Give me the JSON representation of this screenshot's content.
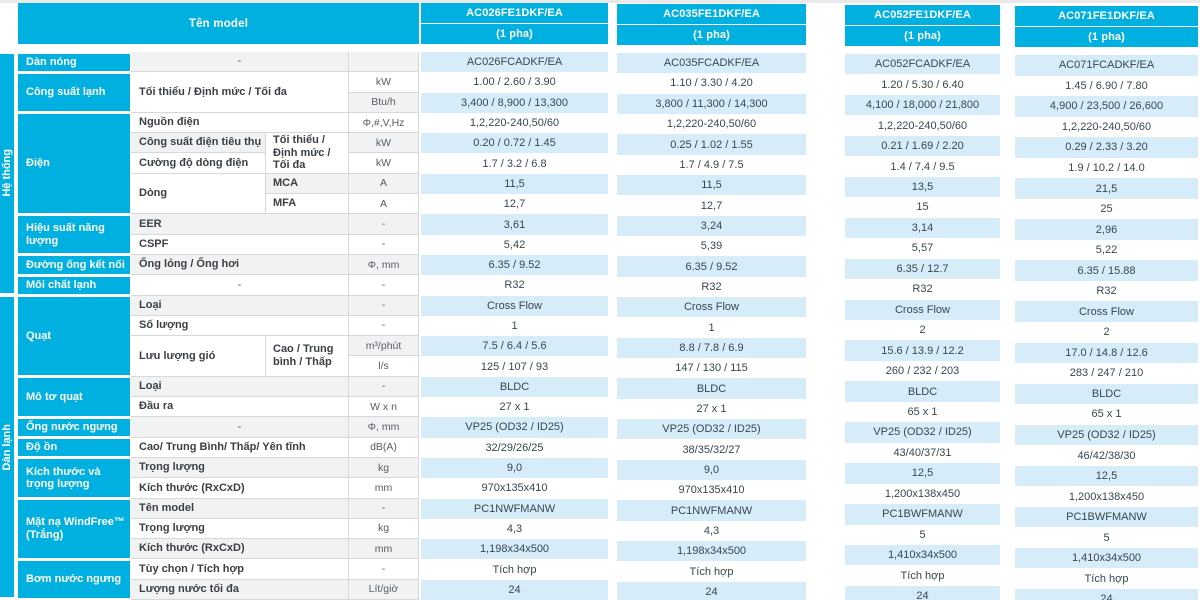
{
  "table": {
    "corner_header": "Tên model",
    "sections": [
      {
        "name": "Hệ thống",
        "r0": 0,
        "r1": 12
      },
      {
        "name": "Dàn lạnh",
        "r0": 12,
        "r1": 27
      }
    ],
    "categories": [
      {
        "label": "Dàn nóng",
        "r0": 0,
        "r1": 1
      },
      {
        "label": "Công suất lạnh",
        "r0": 1,
        "r1": 3
      },
      {
        "label": "Điện",
        "r0": 3,
        "r1": 8
      },
      {
        "label": "Hiệu suất năng lượng",
        "r0": 8,
        "r1": 10
      },
      {
        "label": "Đường ống kết nối",
        "r0": 10,
        "r1": 11
      },
      {
        "label": "Môi chất lạnh",
        "r0": 11,
        "r1": 12
      },
      {
        "label": "Quạt",
        "r0": 12,
        "r1": 16
      },
      {
        "label": "Mô tơ quạt",
        "r0": 16,
        "r1": 18
      },
      {
        "label": "Ống nước ngưng",
        "r0": 18,
        "r1": 19
      },
      {
        "label": "Độ ồn",
        "r0": 19,
        "r1": 20
      },
      {
        "label": "Kích thước và trọng lượng",
        "r0": 20,
        "r1": 22
      },
      {
        "label": "Mặt nạ WindFree™ (Trắng)",
        "r0": 22,
        "r1": 25
      },
      {
        "label": "Bơm nước ngưng",
        "r0": 25,
        "r1": 27
      }
    ],
    "labels": [
      {
        "text": "-",
        "r0": 0,
        "r1": 1,
        "wide": true,
        "center": true
      },
      {
        "text": "Tối thiểu / Định mức / Tối đa",
        "r0": 1,
        "r1": 3,
        "wide": true
      },
      {
        "text": "Nguồn điện",
        "r0": 3,
        "r1": 4,
        "wide": true
      },
      {
        "text": "Công suất điện tiêu thụ",
        "r0": 4,
        "r1": 5
      },
      {
        "text": "Cường độ dòng điện",
        "r0": 5,
        "r1": 6
      },
      {
        "text": "Dòng",
        "r0": 6,
        "r1": 8
      },
      {
        "text": "EER",
        "r0": 8,
        "r1": 9,
        "wide": true
      },
      {
        "text": "CSPF",
        "r0": 9,
        "r1": 10,
        "wide": true
      },
      {
        "text": "Ống lỏng / Ống hơi",
        "r0": 10,
        "r1": 11,
        "wide": true
      },
      {
        "text": "-",
        "r0": 11,
        "r1": 12,
        "wide": true,
        "center": true
      },
      {
        "text": "Loại",
        "r0": 12,
        "r1": 13,
        "wide": true
      },
      {
        "text": "Số lượng",
        "r0": 13,
        "r1": 14,
        "wide": true
      },
      {
        "text": "Lưu lượng gió",
        "r0": 14,
        "r1": 16
      },
      {
        "text": "Loại",
        "r0": 16,
        "r1": 17,
        "wide": true
      },
      {
        "text": "Đầu ra",
        "r0": 17,
        "r1": 18,
        "wide": true
      },
      {
        "text": "-",
        "r0": 18,
        "r1": 19,
        "wide": true,
        "center": true
      },
      {
        "text": "Cao/ Trung Bình/ Thấp/ Yên tĩnh",
        "r0": 19,
        "r1": 20,
        "wide": true
      },
      {
        "text": "Trọng lượng",
        "r0": 20,
        "r1": 21,
        "wide": true
      },
      {
        "text": "Kích thước (RxCxD)",
        "r0": 21,
        "r1": 22,
        "wide": true
      },
      {
        "text": "Tên model",
        "r0": 22,
        "r1": 23,
        "wide": true
      },
      {
        "text": "Trọng lượng",
        "r0": 23,
        "r1": 24,
        "wide": true
      },
      {
        "text": "Kích thước (RxCxD)",
        "r0": 24,
        "r1": 25,
        "wide": true
      },
      {
        "text": "Tùy chọn / Tích hợp",
        "r0": 25,
        "r1": 26,
        "wide": true
      },
      {
        "text": "Lượng nước tối đa",
        "r0": 26,
        "r1": 27,
        "wide": true
      }
    ],
    "sublabels": [
      {
        "text": "Tối thiểu / Định mức / Tối đa",
        "r0": 4,
        "r1": 6
      },
      {
        "text": "MCA",
        "r0": 6,
        "r1": 7
      },
      {
        "text": "MFA",
        "r0": 7,
        "r1": 8
      },
      {
        "text": "Cao / Trung bình / Thấp",
        "r0": 14,
        "r1": 16
      }
    ],
    "units": [
      "",
      "kW",
      "Btu/h",
      "Φ,#,V,Hz",
      "kW",
      "kW",
      "A",
      "A",
      "-",
      "-",
      "Φ, mm",
      "-",
      "-",
      "-",
      "m³/phút",
      "l/s",
      "-",
      "W x n",
      "Φ, mm",
      "dB(A)",
      "kg",
      "mm",
      "-",
      "kg",
      "mm",
      "-",
      "Lít/giờ"
    ],
    "columns": [
      {
        "model": "AC026FE1DKF/EA",
        "phase": "(1 pha)",
        "values": [
          "AC026FCADKF/EA",
          "1.00 / 2.60 / 3.90",
          "3,400 / 8,900 / 13,300",
          "1,2,220-240,50/60",
          "0.20 / 0.72 / 1.45",
          "1.7 / 3.2 / 6.8",
          "11,5",
          "12,7",
          "3,61",
          "5,42",
          "6.35 / 9.52",
          "R32",
          "Cross Flow",
          "1",
          "7.5 / 6.4 / 5.6",
          "125 / 107 / 93",
          "BLDC",
          "27 x 1",
          "VP25 (OD32 / ID25)",
          "32/29/26/25",
          "9,0",
          "970x135x410",
          "PC1NWFMANW",
          "4,3",
          "1,198x34x500",
          "Tích hợp",
          "24"
        ]
      },
      {
        "model": "AC035FE1DKF/EA",
        "phase": "(1 pha)",
        "values": [
          "AC035FCADKF/EA",
          "1.10 / 3.30 / 4.20",
          "3,800 / 11,300 / 14,300",
          "1,2,220-240,50/60",
          "0.25 / 1.02 / 1.55",
          "1.7 / 4.9 / 7.5",
          "11,5",
          "12,7",
          "3,24",
          "5,39",
          "6.35 / 9.52",
          "R32",
          "Cross Flow",
          "1",
          "8.8 / 7.8 / 6.9",
          "147 / 130 / 115",
          "BLDC",
          "27 x 1",
          "VP25 (OD32 / ID25)",
          "38/35/32/27",
          "9,0",
          "970x135x410",
          "PC1NWFMANW",
          "4,3",
          "1,198x34x500",
          "Tích hợp",
          "24"
        ]
      },
      {
        "model": "AC052FE1DKF/EA",
        "phase": "(1 pha)",
        "values": [
          "AC052FCADKF/EA",
          "1.20 / 5.30 / 6.40",
          "4,100 / 18,000 / 21,800",
          "1,2,220-240,50/60",
          "0.21 / 1.69 / 2.20",
          "1.4 / 7.4 / 9.5",
          "13,5",
          "15",
          "3,14",
          "5,57",
          "6.35 / 12.7",
          "R32",
          "Cross Flow",
          "2",
          "15.6 / 13.9 / 12.2",
          "260 / 232 / 203",
          "BLDC",
          "65 x 1",
          "VP25 (OD32 / ID25)",
          "43/40/37/31",
          "12,5",
          "1,200x138x450",
          "PC1BWFMANW",
          "5",
          "1,410x34x500",
          "Tích hợp",
          "24"
        ]
      },
      {
        "model": "AC071FE1DKF/EA",
        "phase": "(1 pha)",
        "values": [
          "AC071FCADKF/EA",
          "1.45 / 6.90 / 7.80",
          "4,900 / 23,500 / 26,600",
          "1,2,220-240,50/60",
          "0.29 / 2.33 / 3.20",
          "1.9 / 10.2 / 14.0",
          "21,5",
          "25",
          "2,96",
          "5,22",
          "6.35 / 15.88",
          "R32",
          "Cross Flow",
          "2",
          "17.0 / 14.8 / 12.6",
          "283 / 247 / 210",
          "BLDC",
          "65 x 1",
          "VP25 (OD32 / ID25)",
          "46/42/38/30",
          "12,5",
          "1,200x138x450",
          "PC1BWFMANW",
          "5",
          "1,410x34x500",
          "Tích hợp",
          "24"
        ]
      }
    ]
  },
  "colors": {
    "accent_cyan": "#00b0e0",
    "stripe_blue": "#d6ecf9",
    "stripe_gray": "#f1f2f3",
    "border_gray": "#d8d8d8",
    "text_dark": "#37474f"
  }
}
